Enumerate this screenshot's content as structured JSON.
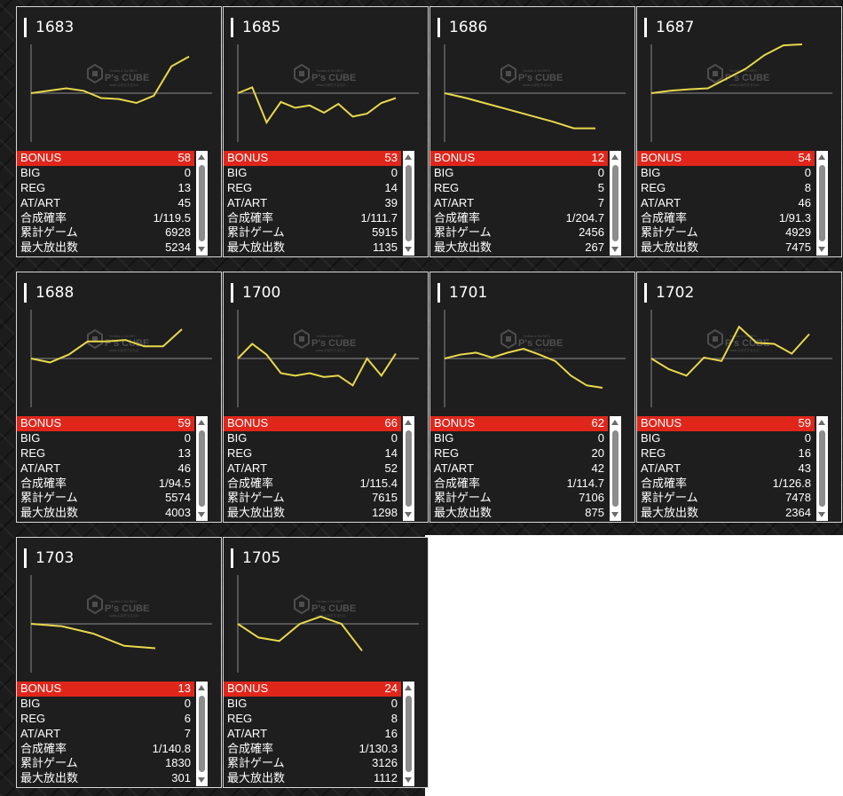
{
  "labels": {
    "bonus": "BONUS",
    "big": "BIG",
    "reg": "REG",
    "at_art": "AT/ART",
    "prob": "合成確率",
    "games": "累計ゲーム",
    "max_payout": "最大放出数"
  },
  "watermark": {
    "brand": "P's CUBE",
    "top_text": "Yoshida & Sol INFO",
    "bottom_text": "sekai.の存在するもの"
  },
  "colors": {
    "line": "#e8d84c",
    "bonus_bg": "#e0261b",
    "baseline": "#777777"
  },
  "machines": [
    {
      "id": "1683",
      "bonus": "58",
      "big": "0",
      "reg": "13",
      "at_art": "45",
      "prob": "1/119.5",
      "games": "6928",
      "max_payout": "5234",
      "trend": [
        0.0,
        0.05,
        0.1,
        0.05,
        -0.1,
        -0.12,
        -0.2,
        -0.05,
        0.55,
        0.75
      ]
    },
    {
      "id": "1685",
      "bonus": "53",
      "big": "0",
      "reg": "14",
      "at_art": "39",
      "prob": "1/111.7",
      "games": "5915",
      "max_payout": "1135",
      "trend": [
        0.0,
        0.12,
        -0.6,
        -0.18,
        -0.3,
        -0.25,
        -0.4,
        -0.22,
        -0.48,
        -0.42,
        -0.2,
        -0.1
      ]
    },
    {
      "id": "1686",
      "bonus": "12",
      "big": "0",
      "reg": "5",
      "at_art": "7",
      "prob": "1/204.7",
      "games": "2456",
      "max_payout": "267",
      "trend": [
        0.0,
        -0.1,
        -0.22,
        -0.34,
        -0.46,
        -0.58,
        -0.72,
        -0.72
      ]
    },
    {
      "id": "1687",
      "bonus": "54",
      "big": "0",
      "reg": "8",
      "at_art": "46",
      "prob": "1/91.3",
      "games": "4929",
      "max_payout": "7475",
      "trend": [
        0.0,
        0.05,
        0.08,
        0.1,
        0.3,
        0.5,
        0.78,
        0.98,
        1.0
      ]
    },
    {
      "id": "1688",
      "bonus": "59",
      "big": "0",
      "reg": "13",
      "at_art": "46",
      "prob": "1/94.5",
      "games": "5574",
      "max_payout": "4003",
      "trend": [
        0.0,
        -0.08,
        0.08,
        0.35,
        0.35,
        0.38,
        0.25,
        0.25,
        0.6
      ]
    },
    {
      "id": "1700",
      "bonus": "66",
      "big": "0",
      "reg": "14",
      "at_art": "52",
      "prob": "1/115.4",
      "games": "7615",
      "max_payout": "1298",
      "trend": [
        0.0,
        0.3,
        0.08,
        -0.3,
        -0.35,
        -0.3,
        -0.38,
        -0.35,
        -0.55,
        0.0,
        -0.35,
        0.1
      ]
    },
    {
      "id": "1701",
      "bonus": "62",
      "big": "0",
      "reg": "20",
      "at_art": "42",
      "prob": "1/114.7",
      "games": "7106",
      "max_payout": "875",
      "trend": [
        0.0,
        0.08,
        0.12,
        0.02,
        0.12,
        0.2,
        0.08,
        -0.05,
        -0.35,
        -0.55,
        -0.6
      ]
    },
    {
      "id": "1702",
      "bonus": "59",
      "big": "0",
      "reg": "16",
      "at_art": "43",
      "prob": "1/126.8",
      "games": "7478",
      "max_payout": "2364",
      "trend": [
        0.0,
        -0.22,
        -0.35,
        0.02,
        -0.05,
        0.65,
        0.32,
        0.3,
        0.1,
        0.5
      ]
    },
    {
      "id": "1703",
      "bonus": "13",
      "big": "0",
      "reg": "6",
      "at_art": "7",
      "prob": "1/140.8",
      "games": "1830",
      "max_payout": "301",
      "trend": [
        0.0,
        -0.05,
        -0.2,
        -0.45,
        -0.5
      ]
    },
    {
      "id": "1705",
      "bonus": "24",
      "big": "0",
      "reg": "8",
      "at_art": "16",
      "prob": "1/130.3",
      "games": "3126",
      "max_payout": "1112",
      "trend": [
        0.0,
        -0.28,
        -0.35,
        0.0,
        0.15,
        0.0,
        -0.55
      ]
    }
  ]
}
